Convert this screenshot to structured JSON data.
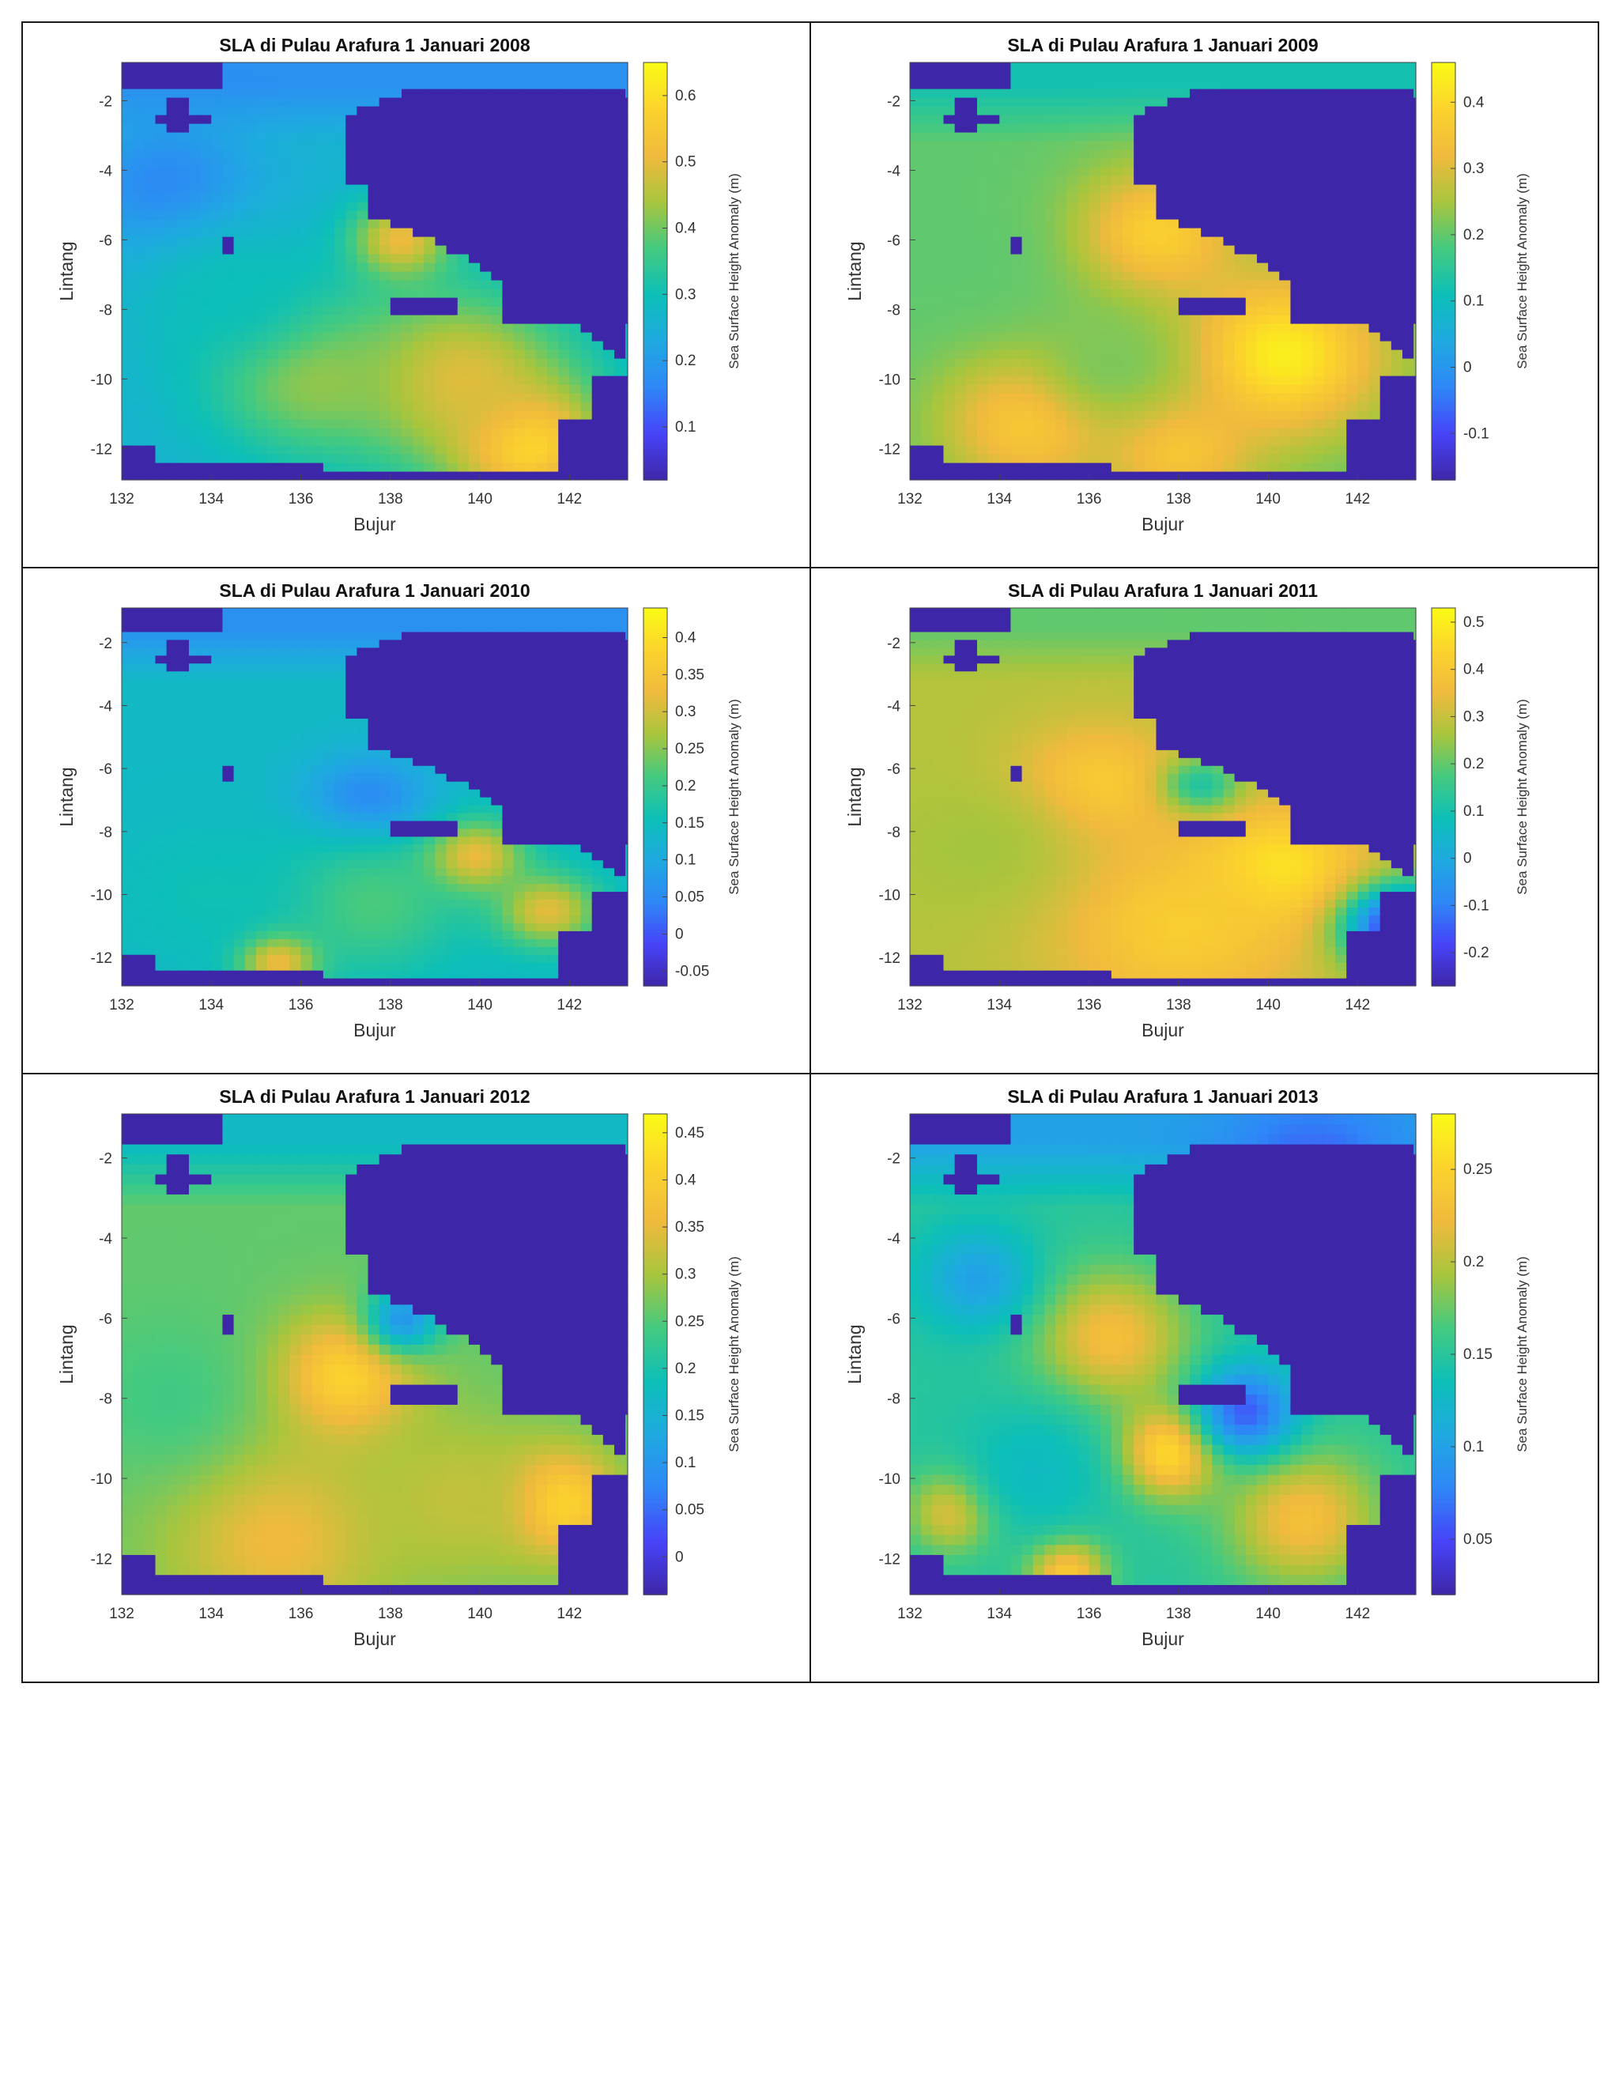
{
  "colormap": [
    "#3e26a8",
    "#4743f8",
    "#2e87f7",
    "#1fa9e1",
    "#0cbfb8",
    "#44ca80",
    "#a8c53d",
    "#f0ba3d",
    "#fcd22d",
    "#f9fb15"
  ],
  "land_color": "#3e26a8",
  "chart_data": [
    {
      "type": "heatmap",
      "title": "SLA di Pulau Arafura 1 Januari 2008",
      "xlabel": "Bujur",
      "ylabel": "Lintang",
      "colorbar_label": "Sea Surface Height Anomaly (m)",
      "xlim": [
        132,
        143.3
      ],
      "ylim": [
        -12.9,
        -0.9
      ],
      "xticks": [
        132,
        134,
        136,
        138,
        140,
        142
      ],
      "yticks": [
        -2,
        -4,
        -6,
        -8,
        -10,
        -12
      ],
      "clim": [
        0.02,
        0.65
      ],
      "cbar_ticks": [
        0.1,
        0.2,
        0.3,
        0.4,
        0.5,
        0.6
      ],
      "cbar_tick_labels": [
        "0.1",
        "0.2",
        "0.3",
        "0.4",
        "0.5",
        "0.6"
      ],
      "base": 0.26,
      "north_strip": 0.18,
      "hotspots": [
        {
          "lon": 138.2,
          "lat": -6.0,
          "r": 0.8,
          "v": 0.52
        },
        {
          "lon": 141.0,
          "lat": -11.8,
          "r": 1.2,
          "v": 0.63
        },
        {
          "lon": 139.5,
          "lat": -10.0,
          "r": 1.8,
          "v": 0.5
        },
        {
          "lon": 136.2,
          "lat": -9.8,
          "r": 1.6,
          "v": 0.44
        },
        {
          "lon": 133.0,
          "lat": -4.5,
          "r": 1.4,
          "v": 0.16
        },
        {
          "lon": 134.5,
          "lat": -7.5,
          "r": 1.5,
          "v": 0.3
        }
      ]
    },
    {
      "type": "heatmap",
      "title": "SLA di Pulau Arafura 1 Januari 2009",
      "xlabel": "Bujur",
      "ylabel": "Lintang",
      "colorbar_label": "Sea Surface Height Anomaly (m)",
      "xlim": [
        132,
        143.3
      ],
      "ylim": [
        -12.9,
        -0.9
      ],
      "xticks": [
        132,
        134,
        136,
        138,
        140,
        142
      ],
      "yticks": [
        -2,
        -4,
        -6,
        -8,
        -10,
        -12
      ],
      "clim": [
        -0.17,
        0.46
      ],
      "cbar_ticks": [
        -0.1,
        0,
        0.1,
        0.2,
        0.3,
        0.4
      ],
      "cbar_tick_labels": [
        "-0.1",
        "0",
        "0.1",
        "0.2",
        "0.3",
        "0.4"
      ],
      "base": 0.2,
      "north_strip": 0.12,
      "hotspots": [
        {
          "lon": 137.5,
          "lat": -5.8,
          "r": 1.3,
          "v": 0.38
        },
        {
          "lon": 140.3,
          "lat": -9.3,
          "r": 1.6,
          "v": 0.44
        },
        {
          "lon": 134.7,
          "lat": -11.2,
          "r": 1.4,
          "v": 0.37
        },
        {
          "lon": 138.0,
          "lat": -12.0,
          "r": 1.2,
          "v": 0.36
        },
        {
          "lon": 136.5,
          "lat": -9.5,
          "r": 1.2,
          "v": 0.22
        },
        {
          "lon": 133.0,
          "lat": -6.5,
          "r": 1.5,
          "v": 0.2
        }
      ]
    },
    {
      "type": "heatmap",
      "title": "SLA di Pulau Arafura 1 Januari 2010",
      "xlabel": "Bujur",
      "ylabel": "Lintang",
      "colorbar_label": "Sea Surface Height Anomaly (m)",
      "xlim": [
        132,
        143.3
      ],
      "ylim": [
        -12.9,
        -0.9
      ],
      "xticks": [
        132,
        134,
        136,
        138,
        140,
        142
      ],
      "yticks": [
        -2,
        -4,
        -6,
        -8,
        -10,
        -12
      ],
      "clim": [
        -0.07,
        0.44
      ],
      "cbar_ticks": [
        -0.05,
        0,
        0.05,
        0.1,
        0.15,
        0.2,
        0.25,
        0.3,
        0.35,
        0.4
      ],
      "cbar_tick_labels": [
        "-0.05",
        "0",
        "0.05",
        "0.1",
        "0.15",
        "0.2",
        "0.25",
        "0.3",
        "0.35",
        "0.4"
      ],
      "base": 0.14,
      "north_strip": 0.06,
      "hotspots": [
        {
          "lon": 135.5,
          "lat": -12.0,
          "r": 0.6,
          "v": 0.42
        },
        {
          "lon": 139.8,
          "lat": -8.8,
          "r": 0.8,
          "v": 0.35
        },
        {
          "lon": 141.5,
          "lat": -10.5,
          "r": 0.8,
          "v": 0.32
        },
        {
          "lon": 137.5,
          "lat": -7.0,
          "r": 1.0,
          "v": 0.04
        },
        {
          "lon": 137.5,
          "lat": -10.3,
          "r": 1.5,
          "v": 0.22
        },
        {
          "lon": 134.0,
          "lat": -10.0,
          "r": 1.5,
          "v": 0.16
        }
      ]
    },
    {
      "type": "heatmap",
      "title": "SLA di Pulau Arafura 1 Januari 2011",
      "xlabel": "Bujur",
      "ylabel": "Lintang",
      "colorbar_label": "Sea Surface Height Anomaly (m)",
      "xlim": [
        132,
        143.3
      ],
      "ylim": [
        -12.9,
        -0.9
      ],
      "xticks": [
        132,
        134,
        136,
        138,
        140,
        142
      ],
      "yticks": [
        -2,
        -4,
        -6,
        -8,
        -10,
        -12
      ],
      "clim": [
        -0.27,
        0.53
      ],
      "cbar_ticks": [
        -0.2,
        -0.1,
        0,
        0.1,
        0.2,
        0.3,
        0.4,
        0.5
      ],
      "cbar_tick_labels": [
        "-0.2",
        "-0.1",
        "0",
        "0.1",
        "0.2",
        "0.3",
        "0.4",
        "0.5"
      ],
      "base": 0.28,
      "north_strip": 0.2,
      "hotspots": [
        {
          "lon": 140.2,
          "lat": -9.2,
          "r": 1.3,
          "v": 0.5
        },
        {
          "lon": 136.2,
          "lat": -6.5,
          "r": 1.3,
          "v": 0.42
        },
        {
          "lon": 138.0,
          "lat": -11.0,
          "r": 2.0,
          "v": 0.42
        },
        {
          "lon": 138.5,
          "lat": -6.5,
          "r": 0.6,
          "v": 0.12
        },
        {
          "lon": 143.0,
          "lat": -11.0,
          "r": 0.9,
          "v": -0.25
        },
        {
          "lon": 133.5,
          "lat": -8.5,
          "r": 1.5,
          "v": 0.26
        }
      ]
    },
    {
      "type": "heatmap",
      "title": "SLA di Pulau Arafura 1 Januari 2012",
      "xlabel": "Bujur",
      "ylabel": "Lintang",
      "colorbar_label": "Sea Surface Height Anomaly (m)",
      "xlim": [
        132,
        143.3
      ],
      "ylim": [
        -12.9,
        -0.9
      ],
      "xticks": [
        132,
        134,
        136,
        138,
        140,
        142
      ],
      "yticks": [
        -2,
        -4,
        -6,
        -8,
        -10,
        -12
      ],
      "clim": [
        -0.04,
        0.47
      ],
      "cbar_ticks": [
        0,
        0.05,
        0.1,
        0.15,
        0.2,
        0.25,
        0.3,
        0.35,
        0.4,
        0.45
      ],
      "cbar_tick_labels": [
        "0",
        "0.05",
        "0.1",
        "0.15",
        "0.2",
        "0.25",
        "0.3",
        "0.35",
        "0.4",
        "0.45"
      ],
      "base": 0.26,
      "north_strip": 0.17,
      "hotspots": [
        {
          "lon": 137.0,
          "lat": -7.5,
          "r": 1.1,
          "v": 0.42
        },
        {
          "lon": 141.7,
          "lat": -10.6,
          "r": 0.9,
          "v": 0.45
        },
        {
          "lon": 135.5,
          "lat": -11.5,
          "r": 1.8,
          "v": 0.36
        },
        {
          "lon": 139.5,
          "lat": -10.5,
          "r": 1.5,
          "v": 0.32
        },
        {
          "lon": 138.3,
          "lat": -6.0,
          "r": 0.6,
          "v": 0.1
        },
        {
          "lon": 133.0,
          "lat": -8.0,
          "r": 1.4,
          "v": 0.24
        }
      ]
    },
    {
      "type": "heatmap",
      "title": "SLA di Pulau Arafura 1 Januari 2013",
      "xlabel": "Bujur",
      "ylabel": "Lintang",
      "colorbar_label": "Sea Surface Height Anomaly (m)",
      "xlim": [
        132,
        143.3
      ],
      "ylim": [
        -12.9,
        -0.9
      ],
      "xticks": [
        132,
        134,
        136,
        138,
        140,
        142
      ],
      "yticks": [
        -2,
        -4,
        -6,
        -8,
        -10,
        -12
      ],
      "clim": [
        0.02,
        0.28
      ],
      "cbar_ticks": [
        0.05,
        0.1,
        0.15,
        0.2,
        0.25
      ],
      "cbar_tick_labels": [
        "0.05",
        "0.1",
        "0.15",
        "0.2",
        "0.25"
      ],
      "base": 0.15,
      "north_strip": 0.1,
      "hotspots": [
        {
          "lon": 137.8,
          "lat": -9.3,
          "r": 0.8,
          "v": 0.27
        },
        {
          "lon": 136.5,
          "lat": -6.5,
          "r": 1.2,
          "v": 0.23
        },
        {
          "lon": 140.8,
          "lat": -11.0,
          "r": 1.2,
          "v": 0.23
        },
        {
          "lon": 135.5,
          "lat": -12.3,
          "r": 0.6,
          "v": 0.25
        },
        {
          "lon": 133.0,
          "lat": -10.8,
          "r": 0.7,
          "v": 0.23
        },
        {
          "lon": 139.5,
          "lat": -8.3,
          "r": 0.8,
          "v": 0.06
        },
        {
          "lon": 141.0,
          "lat": -2.5,
          "r": 1.5,
          "v": 0.06
        },
        {
          "lon": 133.5,
          "lat": -5.0,
          "r": 0.9,
          "v": 0.1
        },
        {
          "lon": 134.8,
          "lat": -9.8,
          "r": 1.2,
          "v": 0.13
        }
      ]
    }
  ]
}
